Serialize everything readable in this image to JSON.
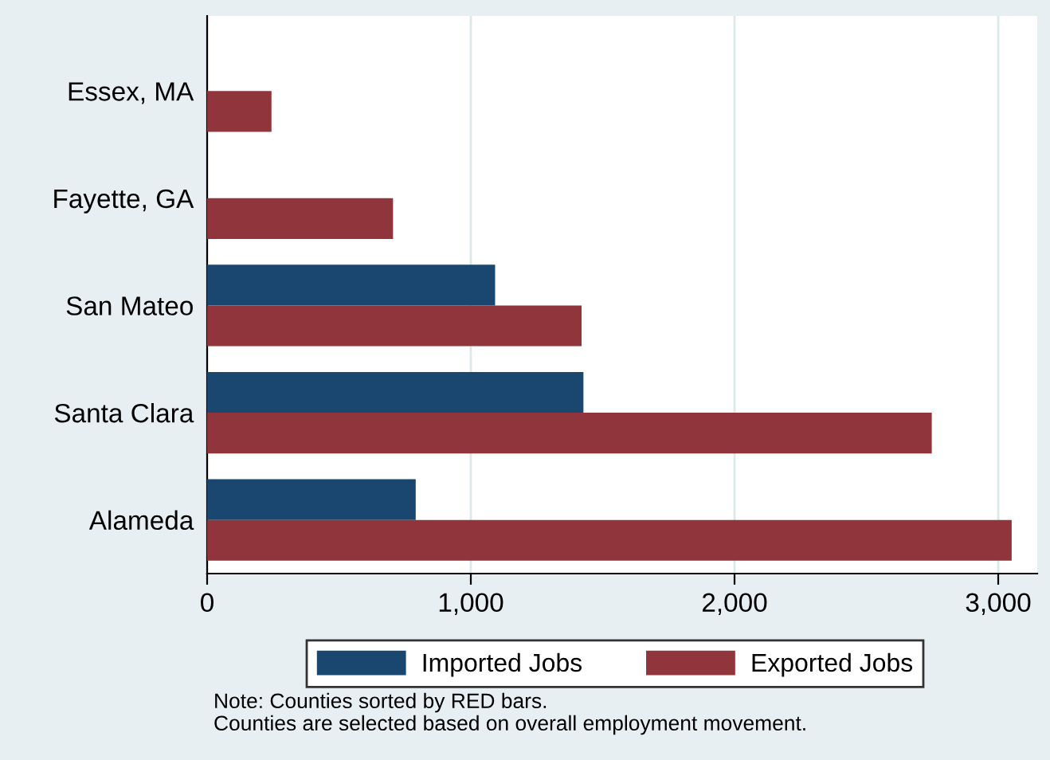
{
  "chart_data": {
    "type": "bar",
    "orientation": "horizontal",
    "categories": [
      "Essex, MA",
      "Fayette, GA",
      "San Mateo",
      "Santa Clara",
      "Alameda"
    ],
    "series": [
      {
        "name": "Imported Jobs",
        "color": "#1a476f",
        "values": [
          null,
          null,
          1092,
          1427,
          791
        ]
      },
      {
        "name": "Exported Jobs",
        "color": "#90353b",
        "values": [
          244,
          705,
          1420,
          2748,
          3051
        ]
      }
    ],
    "xlim": [
      0,
      3148
    ],
    "xticks": [
      0,
      {
        "value": 1000,
        "label": "1,000"
      },
      {
        "value": 2000,
        "label": "2,000"
      },
      {
        "value": 3000,
        "label": "3,000"
      }
    ],
    "grid": "x",
    "legend": "bottom",
    "annotations": [
      "Note: Counties sorted by RED bars.",
      "Counties are selected based on overall employment movement."
    ]
  }
}
